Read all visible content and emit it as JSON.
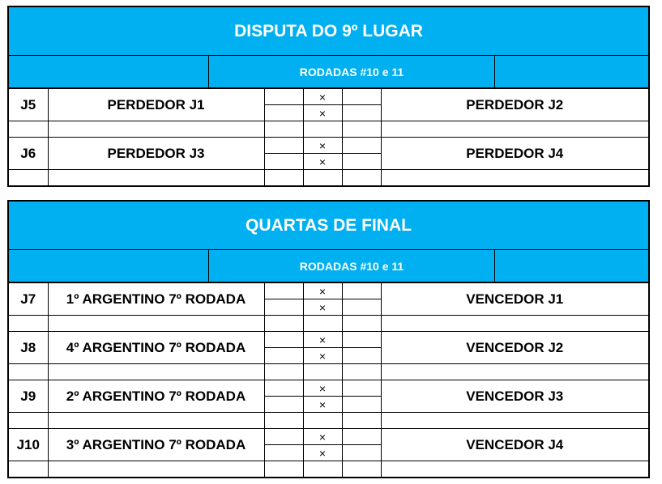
{
  "sections": [
    {
      "title": "DISPUTA DO 9º LUGAR",
      "subtitle": "RODADAS #10 e 11",
      "matches": [
        {
          "id": "J5",
          "home": "PERDEDOR J1",
          "away": "PERDEDOR J2",
          "score_sep": "×"
        },
        {
          "id": "J6",
          "home": "PERDEDOR J3",
          "away": "PERDEDOR J4",
          "score_sep": "×"
        }
      ]
    },
    {
      "title": "QUARTAS DE FINAL",
      "subtitle": "RODADAS #10 e 11",
      "matches": [
        {
          "id": "J7",
          "home": "1º ARGENTINO 7º RODADA",
          "away": "VENCEDOR J1",
          "score_sep": "×"
        },
        {
          "id": "J8",
          "home": "4º ARGENTINO 7º RODADA",
          "away": "VENCEDOR J2",
          "score_sep": "×"
        },
        {
          "id": "J9",
          "home": "2º ARGENTINO 7º RODADA",
          "away": "VENCEDOR J3",
          "score_sep": "×"
        },
        {
          "id": "J10",
          "home": "3º ARGENTINO 7º RODADA",
          "away": "VENCEDOR J4",
          "score_sep": "×"
        }
      ]
    }
  ],
  "colors": {
    "header": "#00B0F0"
  }
}
